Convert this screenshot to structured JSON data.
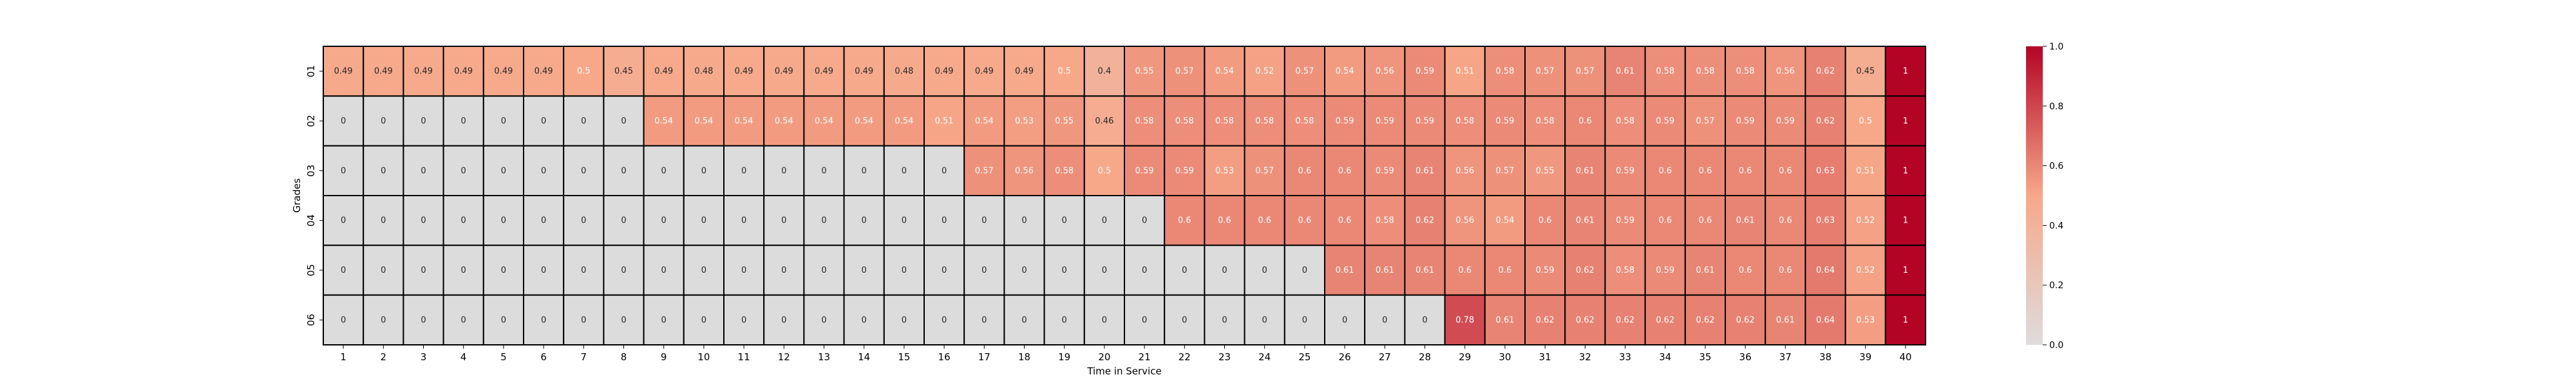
{
  "chart_data": {
    "type": "heatmap",
    "title": "",
    "xlabel": "Time in Service",
    "ylabel": "Grades",
    "x_categories": [
      "1",
      "2",
      "3",
      "4",
      "5",
      "6",
      "7",
      "8",
      "9",
      "10",
      "11",
      "12",
      "13",
      "14",
      "15",
      "16",
      "17",
      "18",
      "19",
      "20",
      "21",
      "22",
      "23",
      "24",
      "25",
      "26",
      "27",
      "28",
      "29",
      "30",
      "31",
      "32",
      "33",
      "34",
      "35",
      "36",
      "37",
      "38",
      "39",
      "40"
    ],
    "y_categories": [
      "01",
      "02",
      "03",
      "04",
      "05",
      "06"
    ],
    "values": [
      [
        0.49,
        0.49,
        0.49,
        0.49,
        0.49,
        0.49,
        0.5,
        0.45,
        0.49,
        0.48,
        0.49,
        0.49,
        0.49,
        0.49,
        0.48,
        0.49,
        0.49,
        0.49,
        0.5,
        0.4,
        0.55,
        0.57,
        0.54,
        0.52,
        0.57,
        0.54,
        0.56,
        0.59,
        0.51,
        0.58,
        0.57,
        0.57,
        0.61,
        0.58,
        0.58,
        0.58,
        0.56,
        0.62,
        0.45,
        1
      ],
      [
        0,
        0,
        0,
        0,
        0,
        0,
        0,
        0,
        0.54,
        0.54,
        0.54,
        0.54,
        0.54,
        0.54,
        0.54,
        0.51,
        0.54,
        0.53,
        0.55,
        0.46,
        0.58,
        0.58,
        0.58,
        0.58,
        0.58,
        0.59,
        0.59,
        0.59,
        0.58,
        0.59,
        0.58,
        0.6,
        0.58,
        0.59,
        0.57,
        0.59,
        0.59,
        0.62,
        0.5,
        1
      ],
      [
        0,
        0,
        0,
        0,
        0,
        0,
        0,
        0,
        0,
        0,
        0,
        0,
        0,
        0,
        0,
        0,
        0.57,
        0.56,
        0.58,
        0.5,
        0.59,
        0.59,
        0.53,
        0.57,
        0.6,
        0.6,
        0.59,
        0.61,
        0.56,
        0.57,
        0.55,
        0.61,
        0.59,
        0.6,
        0.6,
        0.6,
        0.6,
        0.63,
        0.51,
        1
      ],
      [
        0,
        0,
        0,
        0,
        0,
        0,
        0,
        0,
        0,
        0,
        0,
        0,
        0,
        0,
        0,
        0,
        0,
        0,
        0,
        0,
        0,
        0.6,
        0.6,
        0.6,
        0.6,
        0.6,
        0.58,
        0.62,
        0.56,
        0.54,
        0.6,
        0.61,
        0.59,
        0.6,
        0.6,
        0.61,
        0.6,
        0.63,
        0.52,
        1
      ],
      [
        0,
        0,
        0,
        0,
        0,
        0,
        0,
        0,
        0,
        0,
        0,
        0,
        0,
        0,
        0,
        0,
        0,
        0,
        0,
        0,
        0,
        0,
        0,
        0,
        0,
        0.61,
        0.61,
        0.61,
        0.6,
        0.6,
        0.59,
        0.62,
        0.58,
        0.59,
        0.61,
        0.6,
        0.6,
        0.64,
        0.52,
        1
      ],
      [
        0,
        0,
        0,
        0,
        0,
        0,
        0,
        0,
        0,
        0,
        0,
        0,
        0,
        0,
        0,
        0,
        0,
        0,
        0,
        0,
        0,
        0,
        0,
        0,
        0,
        0,
        0,
        0,
        0.78,
        0.61,
        0.62,
        0.62,
        0.62,
        0.62,
        0.62,
        0.62,
        0.61,
        0.64,
        0.53,
        1
      ]
    ],
    "value_range": [
      0.0,
      1.0
    ],
    "colorbar_ticks": [
      "0.0",
      "0.2",
      "0.4",
      "0.6",
      "0.8",
      "1.0"
    ],
    "colormap": [
      "#dddcdc",
      "#f7a889",
      "#b40426"
    ],
    "cell_border_color": "#000000",
    "grid": false,
    "legend": "colorbar-right"
  }
}
